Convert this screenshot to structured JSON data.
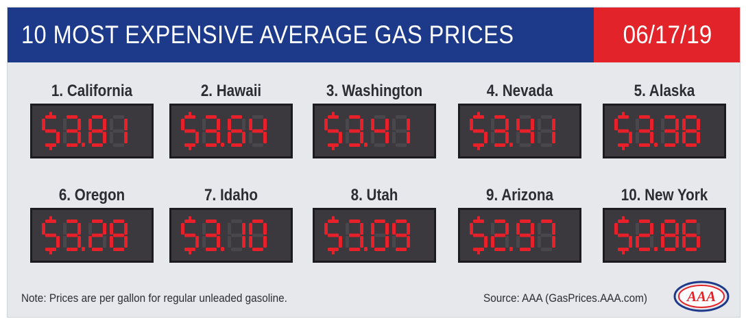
{
  "header": {
    "title": "10 MOST EXPENSIVE AVERAGE GAS PRICES",
    "date": "06/17/19"
  },
  "rankings": [
    {
      "label": "1. California",
      "price": "$3.81",
      "value": 3.81
    },
    {
      "label": "2. Hawaii",
      "price": "$3.64",
      "value": 3.64
    },
    {
      "label": "3. Washington",
      "price": "$3.41",
      "value": 3.41
    },
    {
      "label": "4. Nevada",
      "price": "$3.41",
      "value": 3.41
    },
    {
      "label": "5. Alaska",
      "price": "$3.38",
      "value": 3.38
    },
    {
      "label": "6. Oregon",
      "price": "$3.28",
      "value": 3.28
    },
    {
      "label": "7. Idaho",
      "price": "$3.10",
      "value": 3.1
    },
    {
      "label": "8. Utah",
      "price": "$3.09",
      "value": 3.09
    },
    {
      "label": "9. Arizona",
      "price": "$2.97",
      "value": 2.97
    },
    {
      "label": "10. New York",
      "price": "$2.86",
      "value": 2.86
    }
  ],
  "footer": {
    "note": "Note: Prices are per gallon for regular unleaded gasoline.",
    "source": "Source: AAA (GasPrices.AAA.com)",
    "logo_text": "AAA"
  },
  "colors": {
    "header_blue": "#1d3a8a",
    "header_red": "#e3232a",
    "background": "#e6e8ec",
    "display_bg": "#3b393e",
    "segment_on": "#e8202a",
    "segment_off": "#4a474c"
  },
  "icons": {
    "logo": "aaa-logo"
  }
}
